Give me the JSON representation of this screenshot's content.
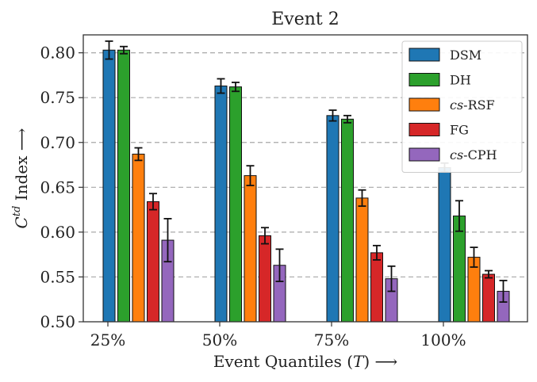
{
  "chart_data": {
    "type": "bar",
    "title": "Event 2",
    "xlabel": "Event Quantiles (T) ⟶",
    "ylabel": "Ctd Index ⟶",
    "categories": [
      "25%",
      "50%",
      "75%",
      "100%"
    ],
    "ylim": [
      0.5,
      0.82
    ],
    "yticks": [
      "0.50",
      "0.55",
      "0.60",
      "0.65",
      "0.70",
      "0.75",
      "0.80"
    ],
    "grid": "horizontal-dashed",
    "legend_position": "top-right",
    "series": [
      {
        "name": "DSM",
        "color": "#1f77b4",
        "values": [
          0.803,
          0.763,
          0.73,
          0.672
        ],
        "errors": [
          0.01,
          0.008,
          0.006,
          0.005
        ]
      },
      {
        "name": "DH",
        "color": "#2ca02c",
        "values": [
          0.803,
          0.762,
          0.726,
          0.618
        ],
        "errors": [
          0.004,
          0.005,
          0.004,
          0.017
        ]
      },
      {
        "name": "cs-RSF",
        "color": "#ff7f0e",
        "values": [
          0.687,
          0.663,
          0.638,
          0.572
        ],
        "errors": [
          0.007,
          0.011,
          0.009,
          0.011
        ]
      },
      {
        "name": "FG",
        "color": "#d62728",
        "values": [
          0.634,
          0.596,
          0.577,
          0.553
        ],
        "errors": [
          0.009,
          0.009,
          0.008,
          0.004
        ]
      },
      {
        "name": "cs-CPH",
        "color": "#9467bd",
        "values": [
          0.591,
          0.563,
          0.548,
          0.534
        ],
        "errors": [
          0.024,
          0.018,
          0.014,
          0.012
        ]
      }
    ]
  }
}
